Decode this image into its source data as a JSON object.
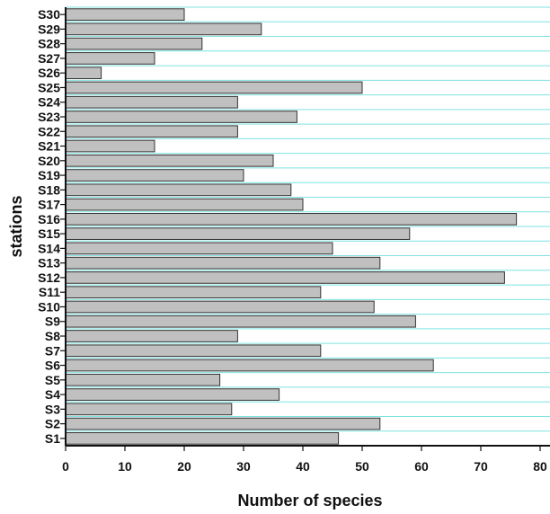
{
  "chart_data": {
    "type": "bar",
    "orientation": "horizontal",
    "categories": [
      "S1",
      "S2",
      "S3",
      "S4",
      "S5",
      "S6",
      "S7",
      "S8",
      "S9",
      "S10",
      "S11",
      "S12",
      "S13",
      "S14",
      "S15",
      "S16",
      "S17",
      "S18",
      "S19",
      "S20",
      "S21",
      "S22",
      "S23",
      "S24",
      "S25",
      "S26",
      "S27",
      "S28",
      "S29",
      "S30"
    ],
    "values": [
      46,
      53,
      28,
      36,
      26,
      62,
      43,
      29,
      59,
      52,
      43,
      74,
      53,
      45,
      58,
      76,
      40,
      38,
      30,
      35,
      15,
      29,
      39,
      29,
      50,
      6,
      15,
      23,
      33,
      20
    ],
    "title": "",
    "xlabel": "Number of species",
    "ylabel": "stations",
    "xlim": [
      0,
      80
    ],
    "xticks": [
      "0",
      "10",
      "20",
      "30",
      "40",
      "50",
      "60",
      "70",
      "80"
    ],
    "grid": "horizontal",
    "legend": "none",
    "colors": {
      "bar_fill": "#c0c0c0",
      "bar_stroke": "#333333",
      "grid": "#7fe3e3",
      "axis": "#111111"
    }
  }
}
